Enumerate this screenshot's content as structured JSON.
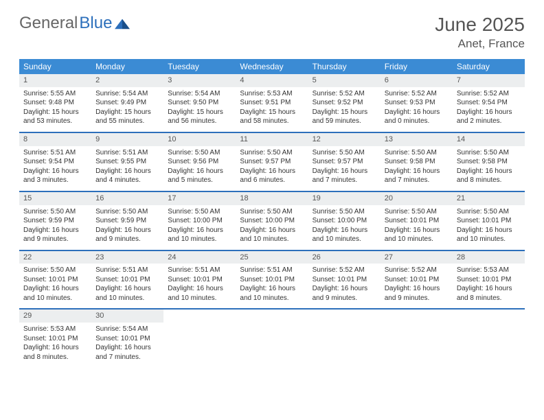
{
  "logo": {
    "text_gray": "General",
    "text_blue": "Blue"
  },
  "header": {
    "title": "June 2025",
    "location": "Anet, France"
  },
  "colors": {
    "header_bg": "#3b8bd4",
    "week_divider": "#2c6fbb",
    "daynum_bg": "#eceeef",
    "text": "#333333",
    "title_text": "#555555"
  },
  "days_of_week": [
    "Sunday",
    "Monday",
    "Tuesday",
    "Wednesday",
    "Thursday",
    "Friday",
    "Saturday"
  ],
  "weeks": [
    [
      {
        "n": "1",
        "sr": "Sunrise: 5:55 AM",
        "ss": "Sunset: 9:48 PM",
        "dl": "Daylight: 15 hours and 53 minutes."
      },
      {
        "n": "2",
        "sr": "Sunrise: 5:54 AM",
        "ss": "Sunset: 9:49 PM",
        "dl": "Daylight: 15 hours and 55 minutes."
      },
      {
        "n": "3",
        "sr": "Sunrise: 5:54 AM",
        "ss": "Sunset: 9:50 PM",
        "dl": "Daylight: 15 hours and 56 minutes."
      },
      {
        "n": "4",
        "sr": "Sunrise: 5:53 AM",
        "ss": "Sunset: 9:51 PM",
        "dl": "Daylight: 15 hours and 58 minutes."
      },
      {
        "n": "5",
        "sr": "Sunrise: 5:52 AM",
        "ss": "Sunset: 9:52 PM",
        "dl": "Daylight: 15 hours and 59 minutes."
      },
      {
        "n": "6",
        "sr": "Sunrise: 5:52 AM",
        "ss": "Sunset: 9:53 PM",
        "dl": "Daylight: 16 hours and 0 minutes."
      },
      {
        "n": "7",
        "sr": "Sunrise: 5:52 AM",
        "ss": "Sunset: 9:54 PM",
        "dl": "Daylight: 16 hours and 2 minutes."
      }
    ],
    [
      {
        "n": "8",
        "sr": "Sunrise: 5:51 AM",
        "ss": "Sunset: 9:54 PM",
        "dl": "Daylight: 16 hours and 3 minutes."
      },
      {
        "n": "9",
        "sr": "Sunrise: 5:51 AM",
        "ss": "Sunset: 9:55 PM",
        "dl": "Daylight: 16 hours and 4 minutes."
      },
      {
        "n": "10",
        "sr": "Sunrise: 5:50 AM",
        "ss": "Sunset: 9:56 PM",
        "dl": "Daylight: 16 hours and 5 minutes."
      },
      {
        "n": "11",
        "sr": "Sunrise: 5:50 AM",
        "ss": "Sunset: 9:57 PM",
        "dl": "Daylight: 16 hours and 6 minutes."
      },
      {
        "n": "12",
        "sr": "Sunrise: 5:50 AM",
        "ss": "Sunset: 9:57 PM",
        "dl": "Daylight: 16 hours and 7 minutes."
      },
      {
        "n": "13",
        "sr": "Sunrise: 5:50 AM",
        "ss": "Sunset: 9:58 PM",
        "dl": "Daylight: 16 hours and 7 minutes."
      },
      {
        "n": "14",
        "sr": "Sunrise: 5:50 AM",
        "ss": "Sunset: 9:58 PM",
        "dl": "Daylight: 16 hours and 8 minutes."
      }
    ],
    [
      {
        "n": "15",
        "sr": "Sunrise: 5:50 AM",
        "ss": "Sunset: 9:59 PM",
        "dl": "Daylight: 16 hours and 9 minutes."
      },
      {
        "n": "16",
        "sr": "Sunrise: 5:50 AM",
        "ss": "Sunset: 9:59 PM",
        "dl": "Daylight: 16 hours and 9 minutes."
      },
      {
        "n": "17",
        "sr": "Sunrise: 5:50 AM",
        "ss": "Sunset: 10:00 PM",
        "dl": "Daylight: 16 hours and 10 minutes."
      },
      {
        "n": "18",
        "sr": "Sunrise: 5:50 AM",
        "ss": "Sunset: 10:00 PM",
        "dl": "Daylight: 16 hours and 10 minutes."
      },
      {
        "n": "19",
        "sr": "Sunrise: 5:50 AM",
        "ss": "Sunset: 10:00 PM",
        "dl": "Daylight: 16 hours and 10 minutes."
      },
      {
        "n": "20",
        "sr": "Sunrise: 5:50 AM",
        "ss": "Sunset: 10:01 PM",
        "dl": "Daylight: 16 hours and 10 minutes."
      },
      {
        "n": "21",
        "sr": "Sunrise: 5:50 AM",
        "ss": "Sunset: 10:01 PM",
        "dl": "Daylight: 16 hours and 10 minutes."
      }
    ],
    [
      {
        "n": "22",
        "sr": "Sunrise: 5:50 AM",
        "ss": "Sunset: 10:01 PM",
        "dl": "Daylight: 16 hours and 10 minutes."
      },
      {
        "n": "23",
        "sr": "Sunrise: 5:51 AM",
        "ss": "Sunset: 10:01 PM",
        "dl": "Daylight: 16 hours and 10 minutes."
      },
      {
        "n": "24",
        "sr": "Sunrise: 5:51 AM",
        "ss": "Sunset: 10:01 PM",
        "dl": "Daylight: 16 hours and 10 minutes."
      },
      {
        "n": "25",
        "sr": "Sunrise: 5:51 AM",
        "ss": "Sunset: 10:01 PM",
        "dl": "Daylight: 16 hours and 10 minutes."
      },
      {
        "n": "26",
        "sr": "Sunrise: 5:52 AM",
        "ss": "Sunset: 10:01 PM",
        "dl": "Daylight: 16 hours and 9 minutes."
      },
      {
        "n": "27",
        "sr": "Sunrise: 5:52 AM",
        "ss": "Sunset: 10:01 PM",
        "dl": "Daylight: 16 hours and 9 minutes."
      },
      {
        "n": "28",
        "sr": "Sunrise: 5:53 AM",
        "ss": "Sunset: 10:01 PM",
        "dl": "Daylight: 16 hours and 8 minutes."
      }
    ],
    [
      {
        "n": "29",
        "sr": "Sunrise: 5:53 AM",
        "ss": "Sunset: 10:01 PM",
        "dl": "Daylight: 16 hours and 8 minutes."
      },
      {
        "n": "30",
        "sr": "Sunrise: 5:54 AM",
        "ss": "Sunset: 10:01 PM",
        "dl": "Daylight: 16 hours and 7 minutes."
      },
      {
        "empty": true
      },
      {
        "empty": true
      },
      {
        "empty": true
      },
      {
        "empty": true
      },
      {
        "empty": true
      }
    ]
  ]
}
